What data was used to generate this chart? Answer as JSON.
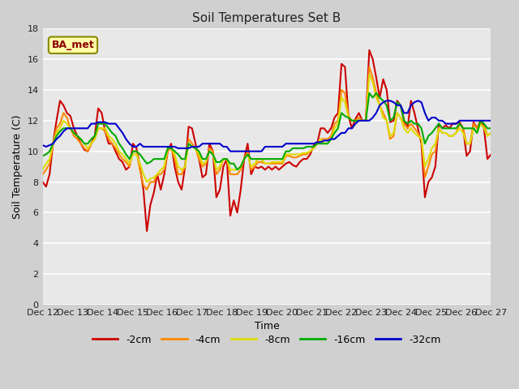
{
  "title": "Soil Temperatures Set B",
  "xlabel": "Time",
  "ylabel": "Soil Temperature (C)",
  "annotation": "BA_met",
  "ylim": [
    0,
    18
  ],
  "yticks": [
    0,
    2,
    4,
    6,
    8,
    10,
    12,
    14,
    16,
    18
  ],
  "x_labels": [
    "Dec 12",
    "Dec 13",
    "Dec 14",
    "Dec 15",
    "Dec 16",
    "Dec 17",
    "Dec 18",
    "Dec 19",
    "Dec 20",
    "Dec 21",
    "Dec 22",
    "Dec 23",
    "Dec 24",
    "Dec 25",
    "Dec 26",
    "Dec 27"
  ],
  "fig_width": 6.4,
  "fig_height": 4.8,
  "dpi": 100,
  "fig_bg": "#d0d0d0",
  "plot_bg": "#e8e8e8",
  "grid_color": "#ffffff",
  "series": {
    "-2cm": {
      "color": "#cc0000",
      "data": [
        8.0,
        7.7,
        8.5,
        10.5,
        12.0,
        13.3,
        13.0,
        12.5,
        12.3,
        11.5,
        11.0,
        10.5,
        10.1,
        10.0,
        10.5,
        11.0,
        12.8,
        12.5,
        11.3,
        10.5,
        10.5,
        10.0,
        9.5,
        9.3,
        8.8,
        9.0,
        10.5,
        10.2,
        9.0,
        7.5,
        4.8,
        6.5,
        7.3,
        8.5,
        7.5,
        8.5,
        10.0,
        10.5,
        9.0,
        8.0,
        7.5,
        9.0,
        11.6,
        11.5,
        10.5,
        9.5,
        8.3,
        8.5,
        10.5,
        10.0,
        7.0,
        7.5,
        9.0,
        9.5,
        5.8,
        6.8,
        6.0,
        7.5,
        9.5,
        10.5,
        8.5,
        9.0,
        8.9,
        9.0,
        8.8,
        9.0,
        8.8,
        9.0,
        8.8,
        9.0,
        9.2,
        9.3,
        9.1,
        9.0,
        9.3,
        9.5,
        9.5,
        9.8,
        10.4,
        10.5,
        11.5,
        11.5,
        11.2,
        11.5,
        12.2,
        12.5,
        15.7,
        15.5,
        12.3,
        11.5,
        12.1,
        12.5,
        12.0,
        12.0,
        16.6,
        16.0,
        14.8,
        13.5,
        14.7,
        14.0,
        11.9,
        12.0,
        13.3,
        13.0,
        12.0,
        11.5,
        13.3,
        12.5,
        11.5,
        10.5,
        7.0,
        8.0,
        8.3,
        9.0,
        11.8,
        11.5,
        11.7,
        11.5,
        11.8,
        11.8,
        11.9,
        11.5,
        9.7,
        10.0,
        11.9,
        11.5,
        12.0,
        11.5,
        9.5,
        9.8
      ]
    },
    "-4cm": {
      "color": "#ff8800",
      "data": [
        8.5,
        8.8,
        9.2,
        10.5,
        11.5,
        11.8,
        12.5,
        12.2,
        11.5,
        11.0,
        10.8,
        10.5,
        10.2,
        10.0,
        10.5,
        10.8,
        11.5,
        11.5,
        11.3,
        10.8,
        10.5,
        10.2,
        9.8,
        9.5,
        9.3,
        9.0,
        10.0,
        10.0,
        8.8,
        7.8,
        7.5,
        8.0,
        8.0,
        8.5,
        8.5,
        8.8,
        10.0,
        10.2,
        9.5,
        8.5,
        8.5,
        9.0,
        10.8,
        10.5,
        10.2,
        9.5,
        9.0,
        9.2,
        10.2,
        10.0,
        8.5,
        8.8,
        9.5,
        9.5,
        8.5,
        8.5,
        8.5,
        8.8,
        9.5,
        10.0,
        8.8,
        9.0,
        9.3,
        9.3,
        9.2,
        9.2,
        9.2,
        9.2,
        9.2,
        9.2,
        9.7,
        9.7,
        9.6,
        9.6,
        9.7,
        9.8,
        9.8,
        10.0,
        10.2,
        10.5,
        10.8,
        10.8,
        10.8,
        11.0,
        11.8,
        12.0,
        14.0,
        13.8,
        12.3,
        12.0,
        12.0,
        12.2,
        12.0,
        12.0,
        15.5,
        14.8,
        13.8,
        13.0,
        12.5,
        12.0,
        10.8,
        11.0,
        12.5,
        12.2,
        11.8,
        11.5,
        11.8,
        11.5,
        11.2,
        10.8,
        8.3,
        9.0,
        9.8,
        10.0,
        11.5,
        11.2,
        11.2,
        11.0,
        11.0,
        11.2,
        11.8,
        11.5,
        10.5,
        10.5,
        11.8,
        11.5,
        12.0,
        11.8,
        11.0,
        11.2
      ]
    },
    "-8cm": {
      "color": "#dddd00",
      "data": [
        8.8,
        9.2,
        9.5,
        10.5,
        11.2,
        11.5,
        12.0,
        11.8,
        11.5,
        11.2,
        11.0,
        10.8,
        10.5,
        10.2,
        10.5,
        10.8,
        11.5,
        11.5,
        11.5,
        11.0,
        10.8,
        10.5,
        10.0,
        9.8,
        9.5,
        9.2,
        9.8,
        9.8,
        9.2,
        8.5,
        8.0,
        8.2,
        8.3,
        8.5,
        8.8,
        9.0,
        10.2,
        10.2,
        9.8,
        9.0,
        8.8,
        9.0,
        10.5,
        10.3,
        10.2,
        9.8,
        9.2,
        9.3,
        10.0,
        9.8,
        8.8,
        9.0,
        9.5,
        9.5,
        8.8,
        8.8,
        8.8,
        9.0,
        9.5,
        9.8,
        9.0,
        9.2,
        9.5,
        9.5,
        9.2,
        9.2,
        9.3,
        9.3,
        9.3,
        9.3,
        9.8,
        9.8,
        9.8,
        9.8,
        9.8,
        9.9,
        9.9,
        10.0,
        10.2,
        10.5,
        10.8,
        10.5,
        10.5,
        10.8,
        11.5,
        11.8,
        13.5,
        13.2,
        12.2,
        12.0,
        12.0,
        12.0,
        12.0,
        12.0,
        15.0,
        14.5,
        13.5,
        13.0,
        12.2,
        12.0,
        11.0,
        11.2,
        12.5,
        12.2,
        11.5,
        11.2,
        11.5,
        11.2,
        11.0,
        10.8,
        9.0,
        9.5,
        10.2,
        10.5,
        11.5,
        11.2,
        11.2,
        11.0,
        11.0,
        11.2,
        11.5,
        11.2,
        10.5,
        10.5,
        11.5,
        11.2,
        11.8,
        11.5,
        11.0,
        11.2
      ]
    },
    "-16cm": {
      "color": "#00aa00",
      "data": [
        9.7,
        9.8,
        10.0,
        10.5,
        11.0,
        11.3,
        11.5,
        11.5,
        11.5,
        11.2,
        11.0,
        10.8,
        10.5,
        10.5,
        10.8,
        11.0,
        11.8,
        11.8,
        11.8,
        11.5,
        11.2,
        11.0,
        10.5,
        10.2,
        9.8,
        9.5,
        10.0,
        10.0,
        9.8,
        9.5,
        9.2,
        9.3,
        9.5,
        9.5,
        9.5,
        9.5,
        10.2,
        10.2,
        10.0,
        9.8,
        9.5,
        9.5,
        10.5,
        10.3,
        10.2,
        10.0,
        9.5,
        9.5,
        10.0,
        9.8,
        9.3,
        9.3,
        9.5,
        9.5,
        9.2,
        9.2,
        8.8,
        9.0,
        9.5,
        9.8,
        9.5,
        9.5,
        9.5,
        9.5,
        9.5,
        9.5,
        9.5,
        9.5,
        9.5,
        9.5,
        10.0,
        10.0,
        10.2,
        10.2,
        10.2,
        10.2,
        10.3,
        10.3,
        10.3,
        10.5,
        10.5,
        10.5,
        10.5,
        10.8,
        11.2,
        11.5,
        12.5,
        12.3,
        12.2,
        12.0,
        12.0,
        12.0,
        12.0,
        12.0,
        13.8,
        13.5,
        13.8,
        13.5,
        13.3,
        13.0,
        12.0,
        12.2,
        13.2,
        13.0,
        12.0,
        11.8,
        12.0,
        11.8,
        11.8,
        11.5,
        10.5,
        11.0,
        11.2,
        11.5,
        11.8,
        11.5,
        11.5,
        11.5,
        11.5,
        11.5,
        11.8,
        11.5,
        11.5,
        11.5,
        11.5,
        11.2,
        12.0,
        11.8,
        11.5,
        11.5
      ]
    },
    "-32cm": {
      "color": "#0000cc",
      "data": [
        10.4,
        10.3,
        10.4,
        10.5,
        10.8,
        11.0,
        11.3,
        11.5,
        11.5,
        11.5,
        11.5,
        11.5,
        11.5,
        11.5,
        11.8,
        11.8,
        11.9,
        11.9,
        11.9,
        11.8,
        11.8,
        11.8,
        11.5,
        11.2,
        10.8,
        10.5,
        10.3,
        10.3,
        10.5,
        10.3,
        10.3,
        10.3,
        10.3,
        10.3,
        10.3,
        10.3,
        10.3,
        10.3,
        10.3,
        10.2,
        10.2,
        10.2,
        10.2,
        10.3,
        10.3,
        10.3,
        10.5,
        10.5,
        10.5,
        10.5,
        10.5,
        10.5,
        10.3,
        10.3,
        10.0,
        10.0,
        10.0,
        10.0,
        10.0,
        10.0,
        10.0,
        10.0,
        10.0,
        10.0,
        10.3,
        10.3,
        10.3,
        10.3,
        10.3,
        10.3,
        10.5,
        10.5,
        10.5,
        10.5,
        10.5,
        10.5,
        10.5,
        10.5,
        10.5,
        10.6,
        10.6,
        10.7,
        10.7,
        10.8,
        10.8,
        11.0,
        11.2,
        11.2,
        11.5,
        11.5,
        11.8,
        12.0,
        12.0,
        12.0,
        12.0,
        12.2,
        12.5,
        13.0,
        13.2,
        13.3,
        13.3,
        13.2,
        13.0,
        13.0,
        12.5,
        12.5,
        13.0,
        13.2,
        13.3,
        13.2,
        12.5,
        12.0,
        12.2,
        12.2,
        12.0,
        12.0,
        11.8,
        11.8,
        11.8,
        11.8,
        12.0,
        12.0,
        12.0,
        12.0,
        12.0,
        12.0,
        12.0,
        12.0,
        12.0,
        12.0
      ]
    }
  },
  "legend_labels": [
    "-2cm",
    "-4cm",
    "-8cm",
    "-16cm",
    "-32cm"
  ],
  "legend_colors": [
    "#cc0000",
    "#ff8800",
    "#dddd00",
    "#00aa00",
    "#0000cc"
  ]
}
